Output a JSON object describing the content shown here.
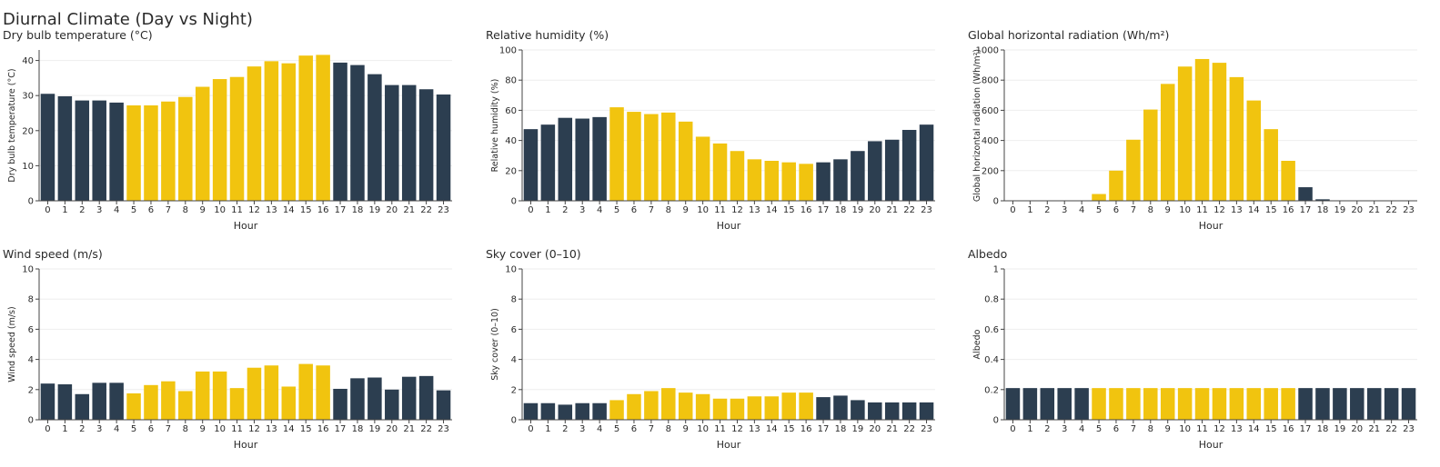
{
  "title": "Diurnal Climate (Day vs Night)",
  "colors": {
    "day": "#f1c40f",
    "night": "#2c3e50",
    "grid": "#eeeeee",
    "axis": "#444444"
  },
  "day_hours": [
    5,
    16
  ],
  "chart_data": [
    {
      "type": "bar",
      "title": "Dry bulb temperature (°C)",
      "xlabel": "Hour",
      "ylabel": "Dry bulb temperature (°C)",
      "categories": [
        "0",
        "1",
        "2",
        "3",
        "4",
        "5",
        "6",
        "7",
        "8",
        "9",
        "10",
        "11",
        "12",
        "13",
        "14",
        "15",
        "16",
        "17",
        "18",
        "19",
        "20",
        "21",
        "22",
        "23"
      ],
      "values": [
        30.5,
        29.8,
        28.6,
        28.6,
        28.0,
        27.2,
        27.2,
        28.3,
        29.6,
        32.5,
        34.7,
        35.3,
        38.3,
        39.8,
        39.2,
        41.4,
        41.6,
        39.4,
        38.7,
        36.1,
        33.0,
        33.0,
        31.8,
        30.3
      ],
      "ylim": [
        0,
        43
      ],
      "yticks": [
        0,
        10,
        20,
        30,
        40
      ],
      "ytick_labels": [
        "0",
        "10",
        "20",
        "30",
        "40"
      ]
    },
    {
      "type": "bar",
      "title": "Relative humidity (%)",
      "xlabel": "Hour",
      "ylabel": "Relative humidity (%)",
      "categories": [
        "0",
        "1",
        "2",
        "3",
        "4",
        "5",
        "6",
        "7",
        "8",
        "9",
        "10",
        "11",
        "12",
        "13",
        "14",
        "15",
        "16",
        "17",
        "18",
        "19",
        "20",
        "21",
        "22",
        "23"
      ],
      "values": [
        47.5,
        50.5,
        55,
        54.5,
        55.5,
        62,
        59,
        57.5,
        58.5,
        52.5,
        42.5,
        38,
        33,
        27.5,
        26.5,
        25.5,
        24.5,
        25.5,
        27.5,
        33,
        39.5,
        40.5,
        47,
        50.5
      ],
      "ylim": [
        0,
        100
      ],
      "yticks": [
        0,
        20,
        40,
        60,
        80,
        100
      ],
      "ytick_labels": [
        "0",
        "20",
        "40",
        "60",
        "80",
        "100"
      ]
    },
    {
      "type": "bar",
      "title": "Global horizontal radiation (Wh/m²)",
      "xlabel": "Hour",
      "ylabel": "Global horizontal radiation (Wh/m²)",
      "categories": [
        "0",
        "1",
        "2",
        "3",
        "4",
        "5",
        "6",
        "7",
        "8",
        "9",
        "10",
        "11",
        "12",
        "13",
        "14",
        "15",
        "16",
        "17",
        "18",
        "19",
        "20",
        "21",
        "22",
        "23"
      ],
      "values": [
        0,
        0,
        0,
        0,
        0,
        45,
        200,
        405,
        605,
        775,
        890,
        940,
        915,
        820,
        665,
        475,
        265,
        90,
        10,
        0,
        0,
        0,
        0,
        0
      ],
      "ylim": [
        0,
        1000
      ],
      "yticks": [
        0,
        200,
        400,
        600,
        800,
        1000
      ],
      "ytick_labels": [
        "0",
        "200",
        "400",
        "600",
        "800",
        "1000"
      ]
    },
    {
      "type": "bar",
      "title": "Wind speed (m/s)",
      "xlabel": "Hour",
      "ylabel": "Wind speed (m/s)",
      "categories": [
        "0",
        "1",
        "2",
        "3",
        "4",
        "5",
        "6",
        "7",
        "8",
        "9",
        "10",
        "11",
        "12",
        "13",
        "14",
        "15",
        "16",
        "17",
        "18",
        "19",
        "20",
        "21",
        "22",
        "23"
      ],
      "values": [
        2.4,
        2.35,
        1.7,
        2.45,
        2.45,
        1.75,
        2.3,
        2.55,
        1.9,
        3.2,
        3.2,
        2.1,
        3.45,
        3.6,
        2.2,
        3.7,
        3.6,
        2.05,
        2.75,
        2.8,
        2.0,
        2.85,
        2.9,
        1.95
      ],
      "ylim": [
        0,
        10
      ],
      "yticks": [
        0,
        2,
        4,
        6,
        8,
        10
      ],
      "ytick_labels": [
        "0",
        "2",
        "4",
        "6",
        "8",
        "10"
      ]
    },
    {
      "type": "bar",
      "title": "Sky cover (0–10)",
      "xlabel": "Hour",
      "ylabel": "Sky cover (0–10)",
      "categories": [
        "0",
        "1",
        "2",
        "3",
        "4",
        "5",
        "6",
        "7",
        "8",
        "9",
        "10",
        "11",
        "12",
        "13",
        "14",
        "15",
        "16",
        "17",
        "18",
        "19",
        "20",
        "21",
        "22",
        "23"
      ],
      "values": [
        1.1,
        1.1,
        1.0,
        1.1,
        1.1,
        1.3,
        1.7,
        1.9,
        2.1,
        1.8,
        1.7,
        1.4,
        1.4,
        1.55,
        1.55,
        1.8,
        1.8,
        1.5,
        1.6,
        1.3,
        1.15,
        1.15,
        1.15,
        1.15
      ],
      "ylim": [
        0,
        10
      ],
      "yticks": [
        0,
        2,
        4,
        6,
        8,
        10
      ],
      "ytick_labels": [
        "0",
        "2",
        "4",
        "6",
        "8",
        "10"
      ]
    },
    {
      "type": "bar",
      "title": "Albedo",
      "xlabel": "Hour",
      "ylabel": "Albedo",
      "categories": [
        "0",
        "1",
        "2",
        "3",
        "4",
        "5",
        "6",
        "7",
        "8",
        "9",
        "10",
        "11",
        "12",
        "13",
        "14",
        "15",
        "16",
        "17",
        "18",
        "19",
        "20",
        "21",
        "22",
        "23"
      ],
      "values": [
        0.21,
        0.21,
        0.21,
        0.21,
        0.21,
        0.21,
        0.21,
        0.21,
        0.21,
        0.21,
        0.21,
        0.21,
        0.21,
        0.21,
        0.21,
        0.21,
        0.21,
        0.21,
        0.21,
        0.21,
        0.21,
        0.21,
        0.21,
        0.21
      ],
      "ylim": [
        0,
        1
      ],
      "yticks": [
        0,
        0.2,
        0.4,
        0.6,
        0.8,
        1
      ],
      "ytick_labels": [
        "0",
        "0.2",
        "0.4",
        "0.6",
        "0.8",
        "1"
      ]
    }
  ]
}
